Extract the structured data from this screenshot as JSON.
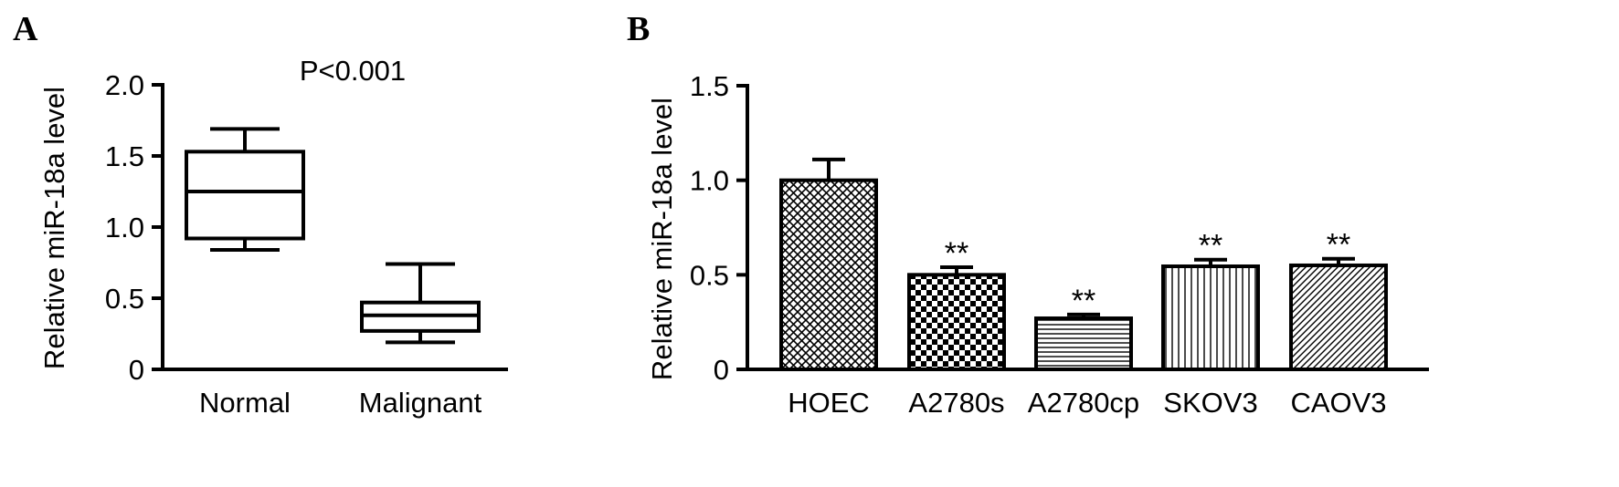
{
  "panels": {
    "a": {
      "letter": "A"
    },
    "b": {
      "letter": "B"
    }
  },
  "chart_data": [
    {
      "type": "box",
      "panel": "A",
      "ylabel": "Relative miR-18a level",
      "annotation": "P<0.001",
      "ylim": [
        0,
        2.0
      ],
      "yticks": [
        "0",
        "0.5",
        "1.0",
        "1.5",
        "2.0"
      ],
      "ytick_values": [
        0,
        0.5,
        1.0,
        1.5,
        2.0
      ],
      "categories": [
        "Normal",
        "Malignant"
      ],
      "boxes": [
        {
          "name": "Normal",
          "min": 0.84,
          "q1": 0.92,
          "median": 1.25,
          "q3": 1.53,
          "max": 1.69
        },
        {
          "name": "Malignant",
          "min": 0.19,
          "q1": 0.27,
          "median": 0.38,
          "q3": 0.47,
          "max": 0.74
        }
      ],
      "grid": false
    },
    {
      "type": "bar",
      "panel": "B",
      "ylabel": "Relative miR-18a level",
      "ylim": [
        0,
        1.5
      ],
      "yticks": [
        "0",
        "0.5",
        "1.0",
        "1.5"
      ],
      "ytick_values": [
        0,
        0.5,
        1.0,
        1.5
      ],
      "categories": [
        "HOEC",
        "A2780s",
        "A2780cp",
        "SKOV3",
        "CAOV3"
      ],
      "values": [
        1.0,
        0.5,
        0.27,
        0.545,
        0.55
      ],
      "errors": [
        0.11,
        0.04,
        0.02,
        0.035,
        0.035
      ],
      "significance": [
        "",
        "**",
        "**",
        "**",
        "**"
      ],
      "patterns": [
        "crosshatch",
        "checker",
        "horizontal-lines",
        "vertical-lines",
        "diagonal-lines"
      ],
      "grid": false
    }
  ]
}
